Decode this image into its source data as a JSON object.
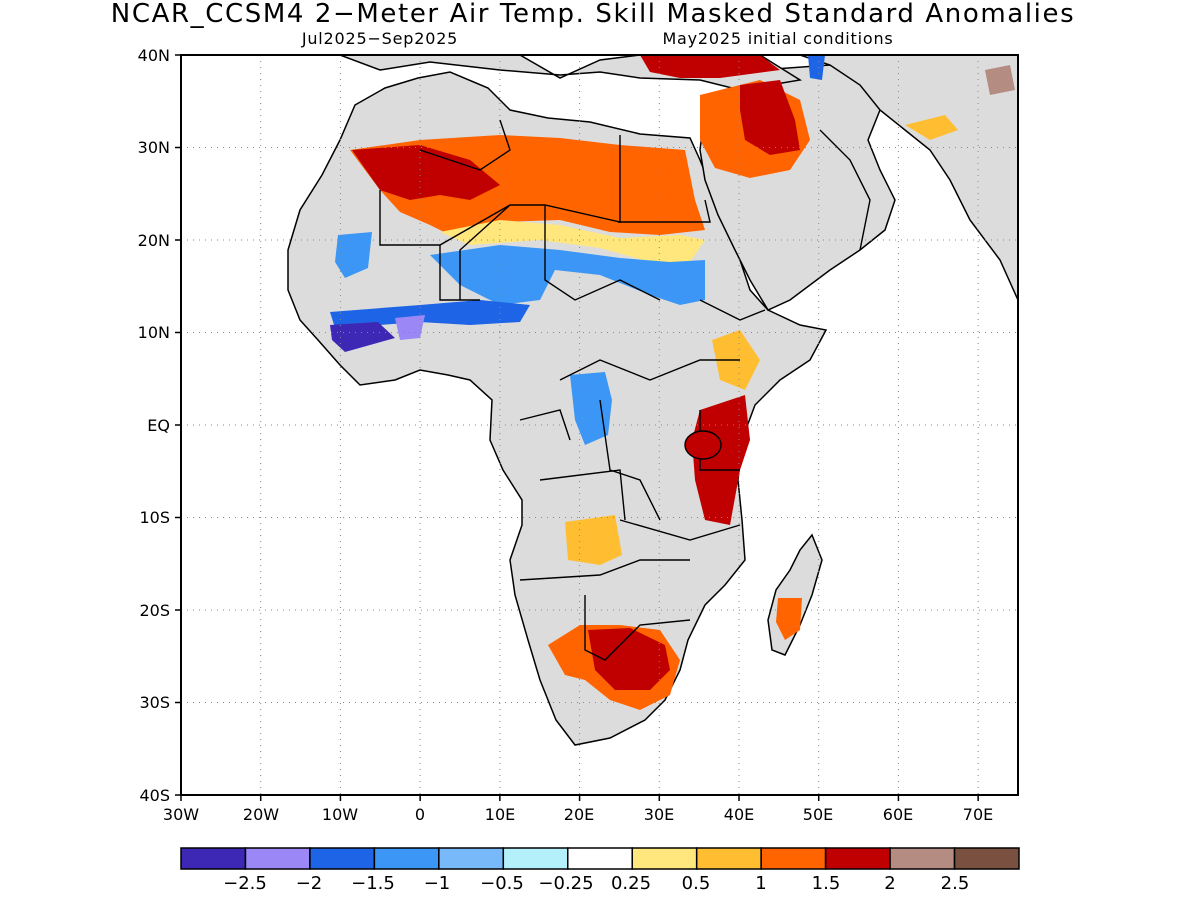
{
  "title": "NCAR_CCSM4 2−Meter Air Temp. Skill Masked Standard Anomalies",
  "subtitle_left": "Jul2025−Sep2025",
  "subtitle_right": "May2025 initial conditions",
  "map": {
    "lon_range": [
      -30,
      75
    ],
    "lat_range": [
      -40,
      40
    ],
    "lat_ticks": [
      {
        "value": 40,
        "label": "40N"
      },
      {
        "value": 30,
        "label": "30N"
      },
      {
        "value": 20,
        "label": "20N"
      },
      {
        "value": 10,
        "label": "10N"
      },
      {
        "value": 0,
        "label": "EQ"
      },
      {
        "value": -10,
        "label": "10S"
      },
      {
        "value": -20,
        "label": "20S"
      },
      {
        "value": -30,
        "label": "30S"
      },
      {
        "value": -40,
        "label": "40S"
      }
    ],
    "lon_ticks": [
      {
        "value": -30,
        "label": "30W"
      },
      {
        "value": -20,
        "label": "20W"
      },
      {
        "value": -10,
        "label": "10W"
      },
      {
        "value": 0,
        "label": "0"
      },
      {
        "value": 10,
        "label": "10E"
      },
      {
        "value": 20,
        "label": "20E"
      },
      {
        "value": 30,
        "label": "30E"
      },
      {
        "value": 40,
        "label": "40E"
      },
      {
        "value": 50,
        "label": "50E"
      },
      {
        "value": 60,
        "label": "60E"
      },
      {
        "value": 70,
        "label": "70E"
      }
    ],
    "masked_color": "#dcdcdc",
    "grid": "dotted"
  },
  "colorbar": {
    "colors": [
      "#3c28b4",
      "#9b87f5",
      "#1e64e6",
      "#3c96f5",
      "#78b9fa",
      "#b4f0fa",
      "#ffffff",
      "#ffe67d",
      "#ffbe32",
      "#ff6400",
      "#c00000",
      "#b48c82",
      "#7a5040"
    ],
    "labels": [
      "−2.5",
      "−2",
      "−1.5",
      "−1",
      "−0.5",
      "−0.25",
      "0.25",
      "0.5",
      "1",
      "1.5",
      "2",
      "2.5"
    ]
  }
}
